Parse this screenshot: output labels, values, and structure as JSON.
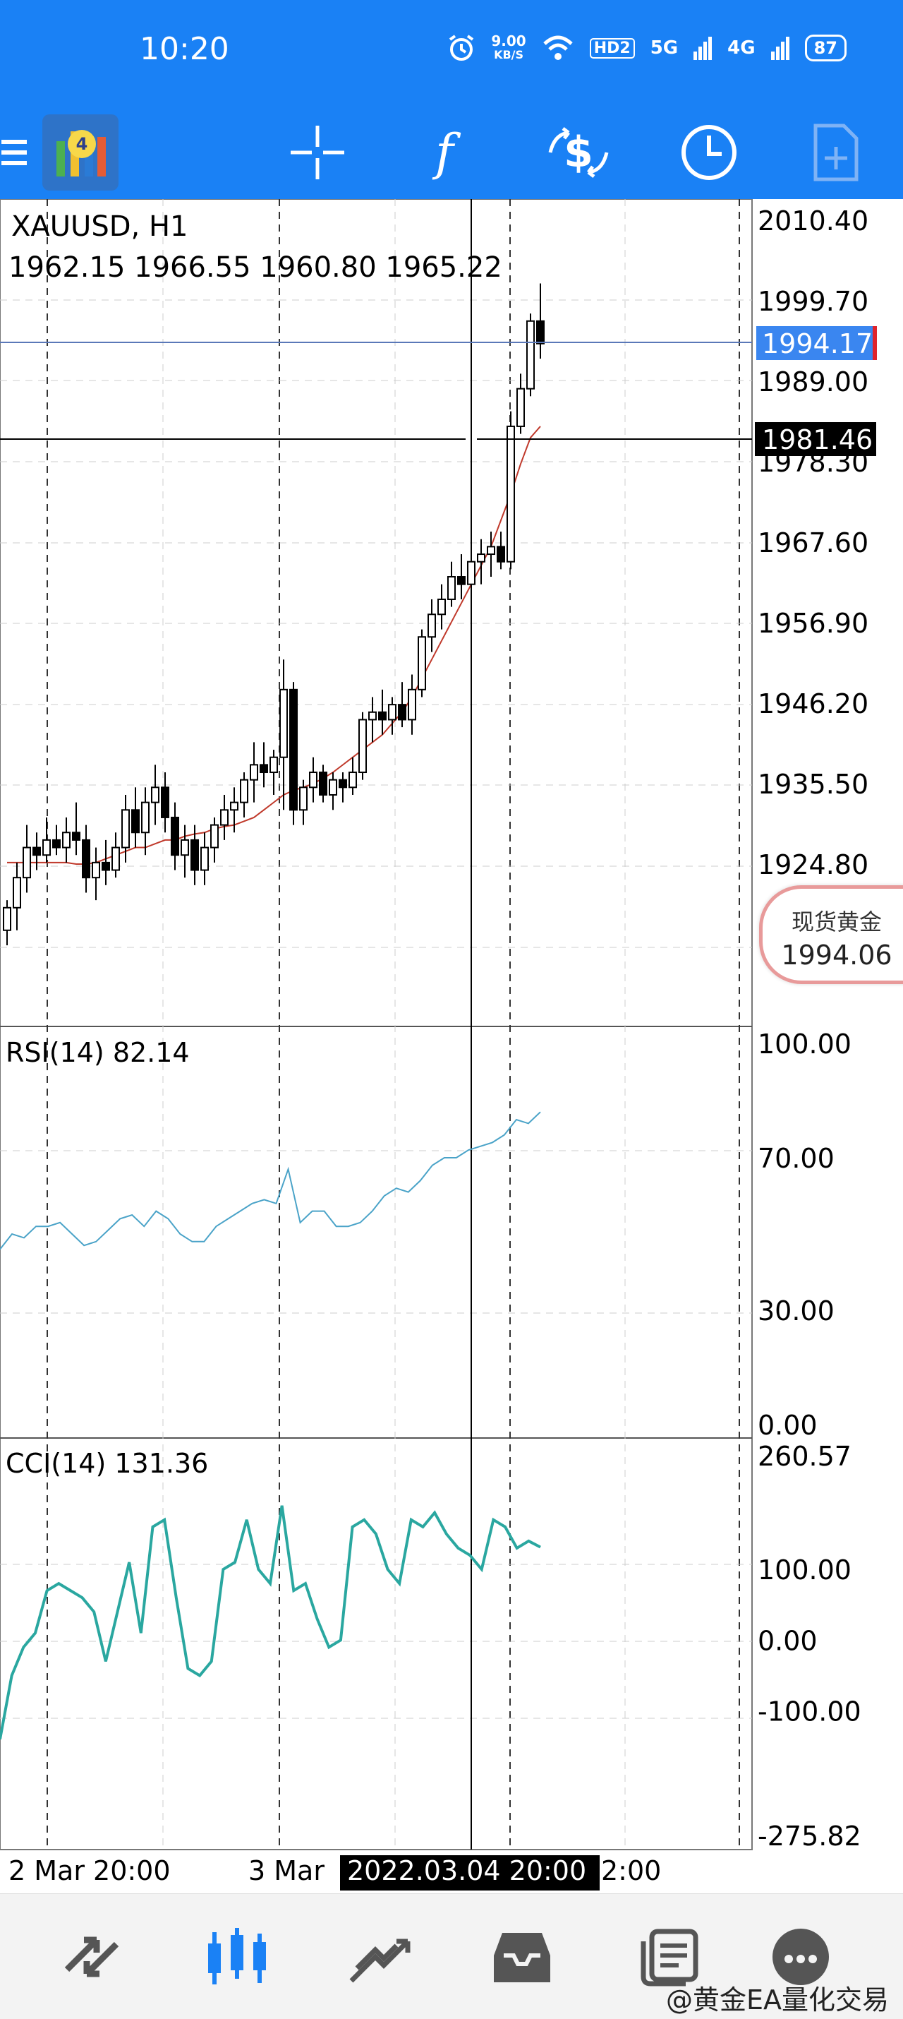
{
  "status_bar": {
    "time": "10:20",
    "net_speed_value": "9.00",
    "net_speed_unit": "KB/S",
    "hd": "HD2",
    "net5g": "5G",
    "net4g": "4G",
    "battery": "87"
  },
  "toolbar": {
    "icons": [
      "app-logo-icon",
      "crosshair-icon",
      "indicators-icon",
      "trade-icon",
      "clock-icon",
      "new-order-icon"
    ]
  },
  "chart": {
    "symbol_line": "XAUUSD, H1",
    "ohlc_line": "1962.15 1966.55 1960.80 1965.22",
    "price_axis": [
      "2010.40",
      "1999.70",
      "1989.00",
      "1978.30",
      "1967.60",
      "1956.90",
      "1946.20",
      "1935.50",
      "1924.80"
    ],
    "bid_label": "1994.17",
    "crosshair_label": "1981.46",
    "rsi_title": "RSI(14) 82.14",
    "rsi_axis": [
      "100.00",
      "70.00",
      "30.00",
      "0.00"
    ],
    "cci_title": "CCI(14) 131.36",
    "cci_axis": [
      "260.57",
      "100.00",
      "0.00",
      "-100.00",
      "-275.82"
    ],
    "time_axis": {
      "left": "2 Mar 20:00",
      "mid": "3 Mar",
      "highlight": "2022.03.04 20:00",
      "right": "2:00"
    },
    "colors": {
      "bid_line": "#5a78b8",
      "bid_bg": "#3a86f0",
      "ma": "#c0392b",
      "rsi": "#4aa3c8",
      "cci": "#2aa7a0"
    }
  },
  "spot_badge": {
    "title": "现货黄金",
    "price": "1994.06"
  },
  "bottom_nav": {
    "icons": [
      "quotes-icon",
      "chart-icon",
      "trade-tab-icon",
      "history-icon",
      "messages-icon",
      "settings-icon"
    ]
  },
  "watermark": "@黄金EA量化交易",
  "chart_data": [
    {
      "type": "candlestick",
      "title": "XAUUSD, H1",
      "ylim": [
        1914,
        2012
      ],
      "candles": [
        [
          1916,
          1920,
          1914,
          1919
        ],
        [
          1919,
          1925,
          1916,
          1923
        ],
        [
          1923,
          1930,
          1921,
          1927
        ],
        [
          1927,
          1929,
          1924,
          1926
        ],
        [
          1926,
          1931,
          1925,
          1928
        ],
        [
          1928,
          1930,
          1926,
          1927
        ],
        [
          1927,
          1931,
          1925,
          1929
        ],
        [
          1929,
          1933,
          1926,
          1928
        ],
        [
          1928,
          1930,
          1921,
          1923
        ],
        [
          1923,
          1927,
          1920,
          1925
        ],
        [
          1925,
          1928,
          1922,
          1924
        ],
        [
          1924,
          1929,
          1923,
          1927
        ],
        [
          1927,
          1934,
          1925,
          1932
        ],
        [
          1932,
          1935,
          1927,
          1929
        ],
        [
          1929,
          1935,
          1926,
          1933
        ],
        [
          1933,
          1938,
          1930,
          1935
        ],
        [
          1935,
          1937,
          1929,
          1931
        ],
        [
          1931,
          1933,
          1924,
          1926
        ],
        [
          1926,
          1930,
          1923,
          1928
        ],
        [
          1928,
          1930,
          1922,
          1924
        ],
        [
          1924,
          1929,
          1922,
          1927
        ],
        [
          1927,
          1931,
          1925,
          1930
        ],
        [
          1930,
          1934,
          1928,
          1932
        ],
        [
          1932,
          1935,
          1929,
          1933
        ],
        [
          1933,
          1937,
          1931,
          1936
        ],
        [
          1936,
          1941,
          1933,
          1938
        ],
        [
          1938,
          1941,
          1935,
          1937
        ],
        [
          1937,
          1940,
          1934,
          1939
        ],
        [
          1939,
          1952,
          1932,
          1948
        ],
        [
          1948,
          1949,
          1930,
          1932
        ],
        [
          1932,
          1936,
          1930,
          1935
        ],
        [
          1935,
          1939,
          1933,
          1937
        ],
        [
          1937,
          1938,
          1933,
          1934
        ],
        [
          1934,
          1937,
          1932,
          1936
        ],
        [
          1936,
          1937,
          1933,
          1935
        ],
        [
          1935,
          1939,
          1934,
          1937
        ],
        [
          1937,
          1945,
          1936,
          1944
        ],
        [
          1944,
          1947,
          1941,
          1945
        ],
        [
          1945,
          1948,
          1942,
          1944
        ],
        [
          1944,
          1947,
          1942,
          1946
        ],
        [
          1946,
          1949,
          1943,
          1944
        ],
        [
          1944,
          1950,
          1942,
          1948
        ],
        [
          1948,
          1956,
          1947,
          1955
        ],
        [
          1955,
          1960,
          1953,
          1958
        ],
        [
          1958,
          1962,
          1956,
          1960
        ],
        [
          1960,
          1965,
          1959,
          1963
        ],
        [
          1963,
          1966,
          1960,
          1962
        ],
        [
          1962,
          1968,
          1961,
          1965
        ],
        [
          1965,
          1968,
          1962,
          1966
        ],
        [
          1966,
          1969,
          1963,
          1967
        ],
        [
          1967,
          1969,
          1964,
          1965
        ],
        [
          1965,
          1985,
          1964,
          1983
        ],
        [
          1983,
          1990,
          1982,
          1988
        ],
        [
          1988,
          1998,
          1987,
          1997
        ],
        [
          1997,
          2002,
          1992,
          1994
        ]
      ],
      "ma": [
        1925,
        1925,
        1925,
        1925,
        1925,
        1925,
        1925,
        1924.8,
        1924.8,
        1925,
        1925.5,
        1926,
        1926.5,
        1927,
        1927,
        1927.5,
        1928,
        1928,
        1928.5,
        1928.8,
        1929,
        1929.5,
        1929.8,
        1930,
        1930.5,
        1931,
        1932,
        1933,
        1934,
        1934.6,
        1935,
        1935.5,
        1936.2,
        1937,
        1938,
        1939,
        1940,
        1941,
        1942,
        1943.5,
        1945,
        1947,
        1949.5,
        1952,
        1954.5,
        1957,
        1959.5,
        1962,
        1964.5,
        1967,
        1970.5,
        1974,
        1978,
        1981.5,
        1983
      ]
    },
    {
      "type": "line",
      "title": "RSI(14) 82.14",
      "ylim": [
        0,
        100
      ],
      "values": [
        46,
        50,
        49,
        52,
        52,
        53,
        50,
        47,
        48,
        51,
        54,
        55,
        52,
        56,
        54,
        50,
        48,
        48,
        52,
        54,
        56,
        58,
        59,
        58,
        67,
        53,
        56,
        56,
        52,
        52,
        53,
        56,
        60,
        62,
        61,
        64,
        68,
        70,
        70,
        72,
        73,
        74,
        76,
        80,
        79,
        82
      ]
    },
    {
      "type": "line",
      "title": "CCI(14) 131.36",
      "ylim": [
        -275.82,
        260.57
      ],
      "values": [
        -140,
        -50,
        -10,
        10,
        70,
        80,
        70,
        60,
        40,
        -30,
        40,
        110,
        10,
        160,
        170,
        60,
        -40,
        -50,
        -30,
        100,
        110,
        170,
        100,
        80,
        190,
        70,
        80,
        30,
        -10,
        0,
        160,
        170,
        150,
        100,
        80,
        170,
        160,
        180,
        150,
        130,
        120,
        100,
        170,
        160,
        130,
        140,
        131.36
      ]
    }
  ]
}
